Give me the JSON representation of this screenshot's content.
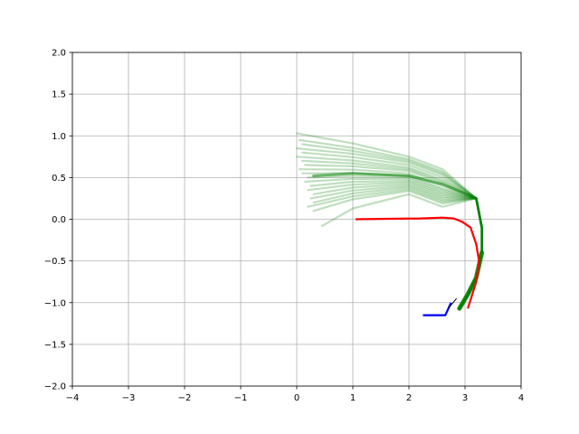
{
  "chart_data": {
    "type": "line",
    "title": "",
    "xlabel": "",
    "ylabel": "",
    "xlim": [
      -4,
      4
    ],
    "ylim": [
      -2,
      2
    ],
    "grid": true,
    "x_ticks": [
      -4,
      -3,
      -2,
      -1,
      0,
      1,
      2,
      3,
      4
    ],
    "x_tick_labels": [
      "−4",
      "−3",
      "−2",
      "−1",
      "0",
      "1",
      "2",
      "3",
      "4"
    ],
    "y_ticks": [
      -2.0,
      -1.5,
      -1.0,
      -0.5,
      0.0,
      0.5,
      1.0,
      1.5,
      2.0
    ],
    "y_tick_labels": [
      "−2.0",
      "−1.5",
      "−1.0",
      "−0.5",
      "0.0",
      "0.5",
      "1.0",
      "1.5",
      "2.0"
    ],
    "colors": {
      "samples": "#008000",
      "reference": "#ff0000",
      "history": "#0000ff",
      "heading": "#000000",
      "grid": "#b0b0b0"
    },
    "sample_paths": {
      "shared_tail": [
        [
          3.2,
          0.25
        ],
        [
          3.3,
          -0.1
        ],
        [
          3.3,
          -0.4
        ],
        [
          3.2,
          -0.7
        ],
        [
          3.05,
          -0.9
        ],
        [
          2.9,
          -1.07
        ]
      ],
      "starts": [
        [
          0.0,
          1.03
        ],
        [
          0.05,
          0.95
        ],
        [
          0.1,
          0.9
        ],
        [
          0.0,
          0.85
        ],
        [
          0.1,
          0.8
        ],
        [
          0.0,
          0.75
        ],
        [
          0.1,
          0.7
        ],
        [
          0.15,
          0.65
        ],
        [
          0.05,
          0.6
        ],
        [
          0.1,
          0.55
        ],
        [
          0.2,
          0.5
        ],
        [
          0.15,
          0.45
        ],
        [
          0.25,
          0.4
        ],
        [
          0.2,
          0.35
        ],
        [
          0.3,
          0.3
        ],
        [
          0.25,
          0.25
        ],
        [
          0.3,
          0.2
        ],
        [
          0.2,
          0.15
        ],
        [
          0.3,
          0.1
        ],
        [
          0.45,
          -0.08
        ]
      ],
      "mid_y_at_x2": [
        0.75,
        0.72,
        0.7,
        0.68,
        0.65,
        0.62,
        0.6,
        0.58,
        0.55,
        0.52,
        0.5,
        0.48,
        0.46,
        0.44,
        0.42,
        0.4,
        0.38,
        0.36,
        0.34,
        0.3
      ]
    },
    "series": [
      {
        "x": [
          1.05,
          1.6,
          2.2,
          2.6,
          2.8,
          2.95,
          3.1,
          3.2,
          3.25,
          3.2,
          3.05
        ],
        "y": [
          0.0,
          0.005,
          0.01,
          0.02,
          0.01,
          -0.03,
          -0.1,
          -0.3,
          -0.5,
          -0.75,
          -1.07
        ]
      },
      {
        "x": [
          2.25,
          2.65,
          2.75
        ],
        "y": [
          -1.15,
          -1.15,
          -1.0
        ]
      },
      {
        "x": [
          2.7,
          2.85
        ],
        "y": [
          -1.07,
          -0.95
        ]
      }
    ]
  }
}
